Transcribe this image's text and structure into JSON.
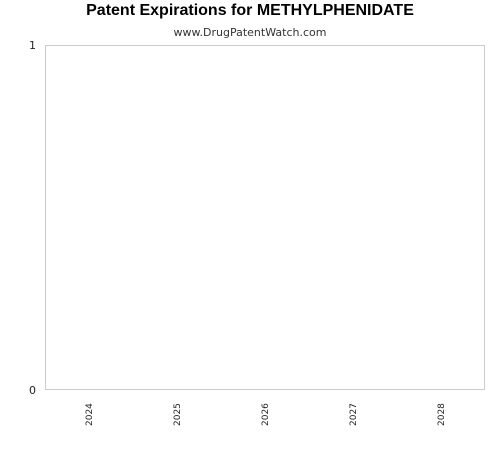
{
  "chart_data": {
    "type": "bar",
    "title": "Patent Expirations for METHYLPHENIDATE",
    "subtitle": "www.DrugPatentWatch.com",
    "xlabel": "",
    "ylabel": "",
    "categories": [
      "2024",
      "2025",
      "2026",
      "2027",
      "2028"
    ],
    "values": [
      0,
      0,
      0,
      0,
      0
    ],
    "ylim": [
      0,
      1
    ],
    "yticks": [
      "0",
      "1"
    ],
    "grid": false,
    "colors": {
      "axis": "#cccccc",
      "text": "#222222"
    }
  }
}
